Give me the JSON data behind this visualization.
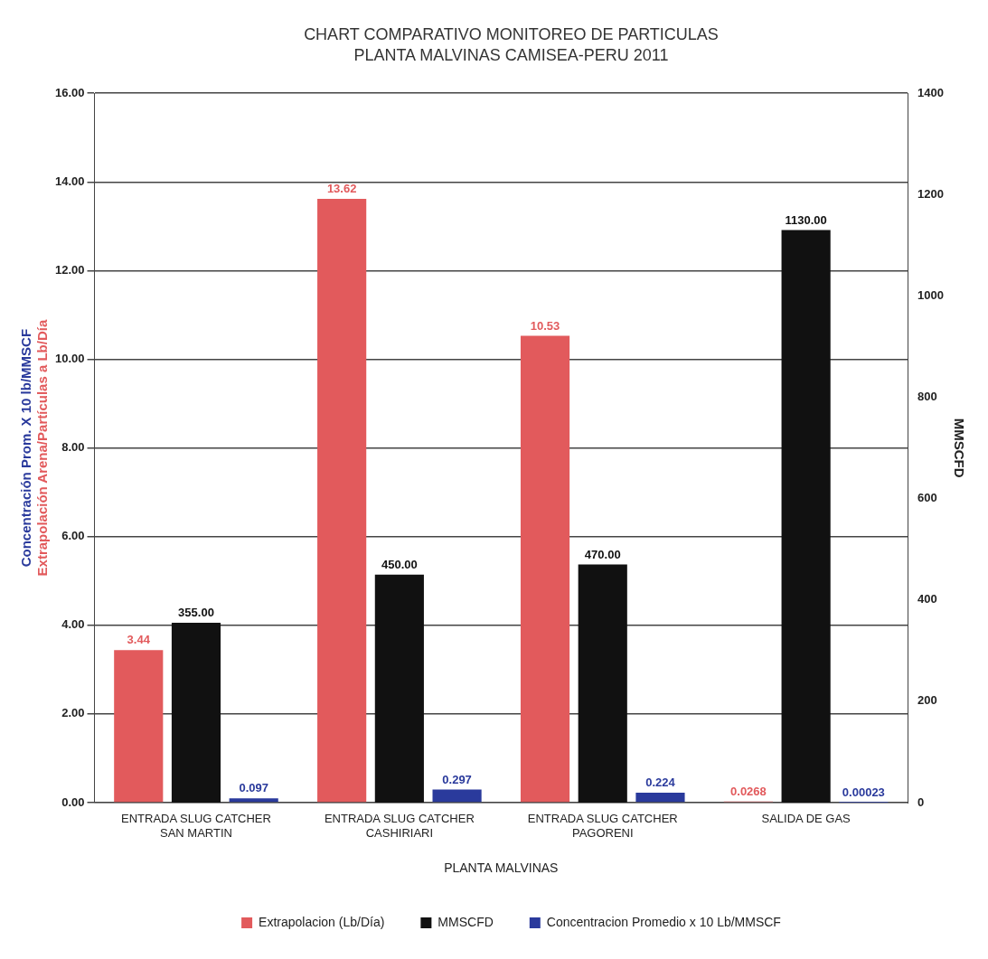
{
  "chart_data": {
    "type": "bar",
    "title": "CHART COMPARATIVO MONITOREO DE PARTICULAS",
    "subtitle": "PLANTA MALVINAS CAMISEA-PERU 2011",
    "xlabel": "PLANTA MALVINAS",
    "ylabel": "Concentración Prom. X 10 lb/MMSCF\nExtrapolación Arena/Partículas a Lb/Día",
    "y2label": "MMSCFD",
    "categories": [
      "ENTRADA SLUG CATCHER SAN MARTIN",
      "ENTRADA SLUG CATCHER CASHIRIARI",
      "ENTRADA SLUG CATCHER PAGORENI",
      "SALIDA DE GAS"
    ],
    "series": [
      {
        "name": "Extrapolacion (Lb/Día)",
        "color": "#e25a5c",
        "values": [
          3.44,
          13.62,
          10.53,
          0.0268
        ],
        "value_labels": [
          "3.44",
          "13.62",
          "10.53",
          "0.0268"
        ]
      },
      {
        "name": "MMSCFD",
        "color": "#111111",
        "axis": "y2",
        "values": [
          355,
          450,
          470,
          1130
        ],
        "value_labels": [
          "355.00",
          "450.00",
          "470.00",
          "1130.00"
        ]
      },
      {
        "name": "Concentracion Promedio x 10 Lb/MMSCF",
        "color": "#2a3a9c",
        "values": [
          0.097,
          0.297,
          0.224,
          0.00023
        ],
        "value_labels": [
          "0.097",
          "0.297",
          "0.224",
          "0.00023"
        ]
      }
    ],
    "ylim": [
      0,
      16
    ],
    "yticks": [
      {
        "value": 0,
        "label": "0.00"
      },
      {
        "value": 2,
        "label": "2.00"
      },
      {
        "value": 4,
        "label": "4.00"
      },
      {
        "value": 6,
        "label": "6.00"
      },
      {
        "value": 8,
        "label": "8.00"
      },
      {
        "value": 10,
        "label": "10.00"
      },
      {
        "value": 12,
        "label": "12.00"
      },
      {
        "value": 14,
        "label": "14.00"
      },
      {
        "value": 16,
        "label": "16.00"
      }
    ],
    "y2lim": [
      0,
      1400
    ],
    "y2ticks": [
      0,
      200,
      400,
      600,
      800,
      1000,
      1200,
      1400
    ],
    "grid": "y",
    "legend": "bottom"
  }
}
